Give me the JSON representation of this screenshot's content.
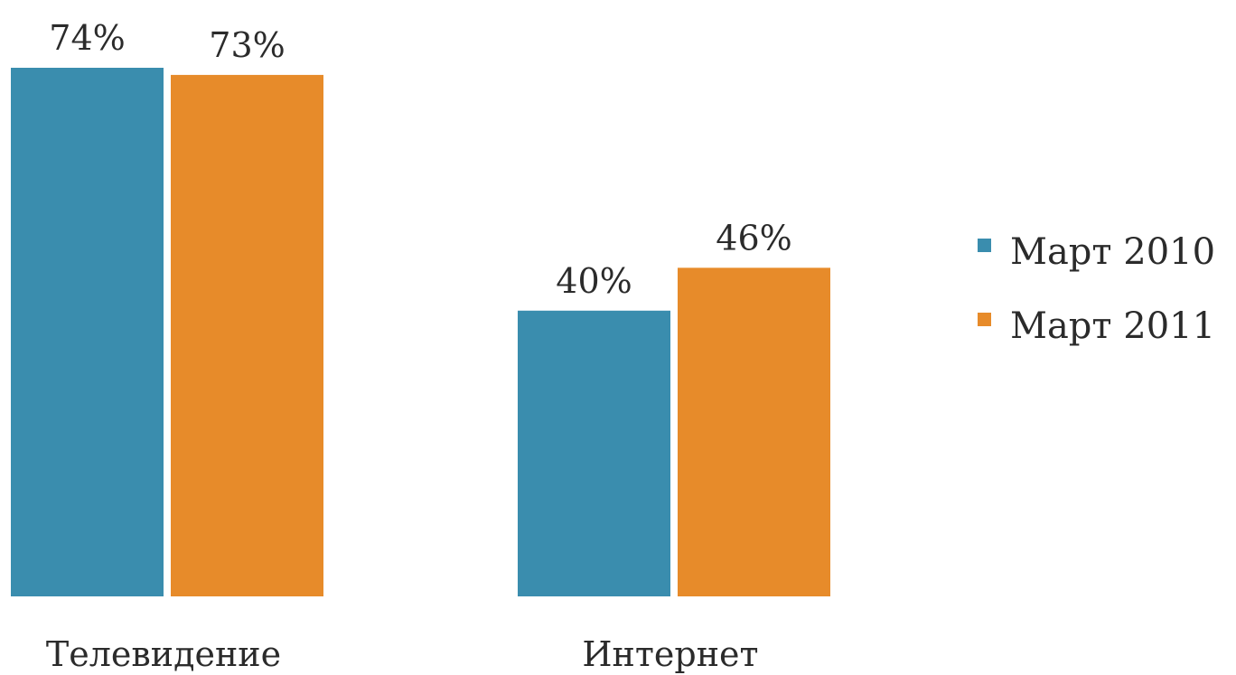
{
  "chart_data": {
    "type": "bar",
    "categories": [
      "Телевидение",
      "Интернет"
    ],
    "series": [
      {
        "name": "Март 2010",
        "values": [
          74,
          40
        ],
        "labels": [
          "74%",
          "40%"
        ],
        "color": "#3A8DAE"
      },
      {
        "name": "Март 2011",
        "values": [
          73,
          46
        ],
        "labels": [
          "73%",
          "46%"
        ],
        "color": "#E78B2A"
      }
    ],
    "title": "",
    "xlabel": "",
    "ylabel": "",
    "ylim": [
      0,
      74
    ],
    "grid": false,
    "legend": "right"
  }
}
